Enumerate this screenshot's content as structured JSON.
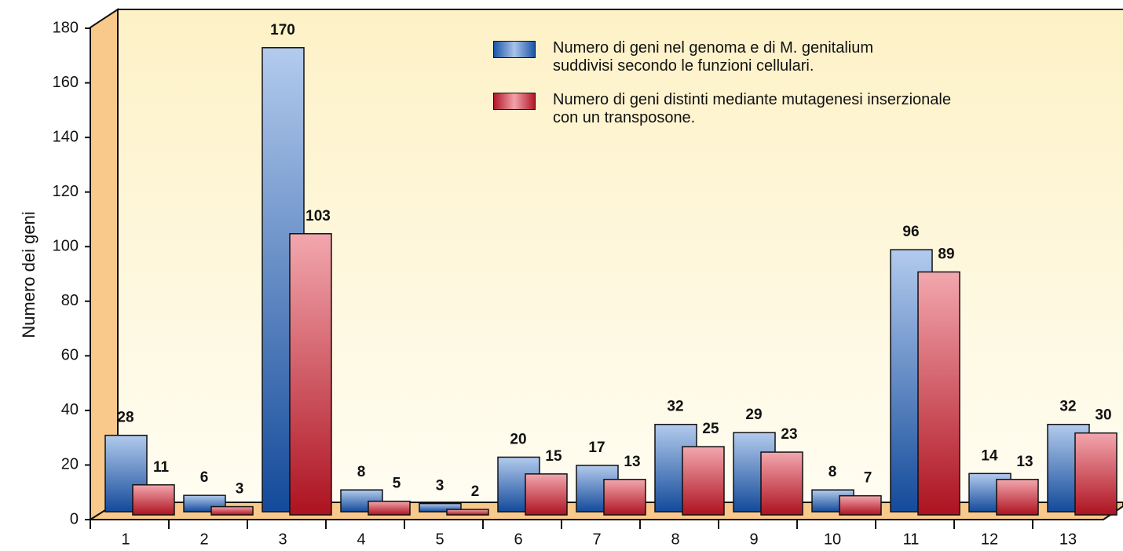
{
  "chart_data": {
    "type": "bar",
    "y_label": "Numero dei geni",
    "categories": [
      "1",
      "2",
      "3",
      "4",
      "5",
      "6",
      "7",
      "8",
      "9",
      "10",
      "11",
      "12",
      "13"
    ],
    "series": [
      {
        "name": "Numero di geni nel genoma e di M. genitalium\nsuddivisi secondo le funzioni cellulari.",
        "color": "#2f62b0",
        "values": [
          28,
          6,
          170,
          8,
          3,
          20,
          17,
          32,
          29,
          8,
          96,
          14,
          32
        ]
      },
      {
        "name": "Numero di geni distinti mediante mutagenesi inserzionale\ncon un transposone.",
        "color": "#c4232f",
        "values": [
          11,
          3,
          103,
          5,
          2,
          15,
          13,
          25,
          23,
          7,
          89,
          13,
          30
        ]
      }
    ],
    "ylim": [
      0,
      180
    ],
    "yticks": [
      0,
      20,
      40,
      60,
      80,
      100,
      120,
      140,
      160,
      180
    ]
  }
}
